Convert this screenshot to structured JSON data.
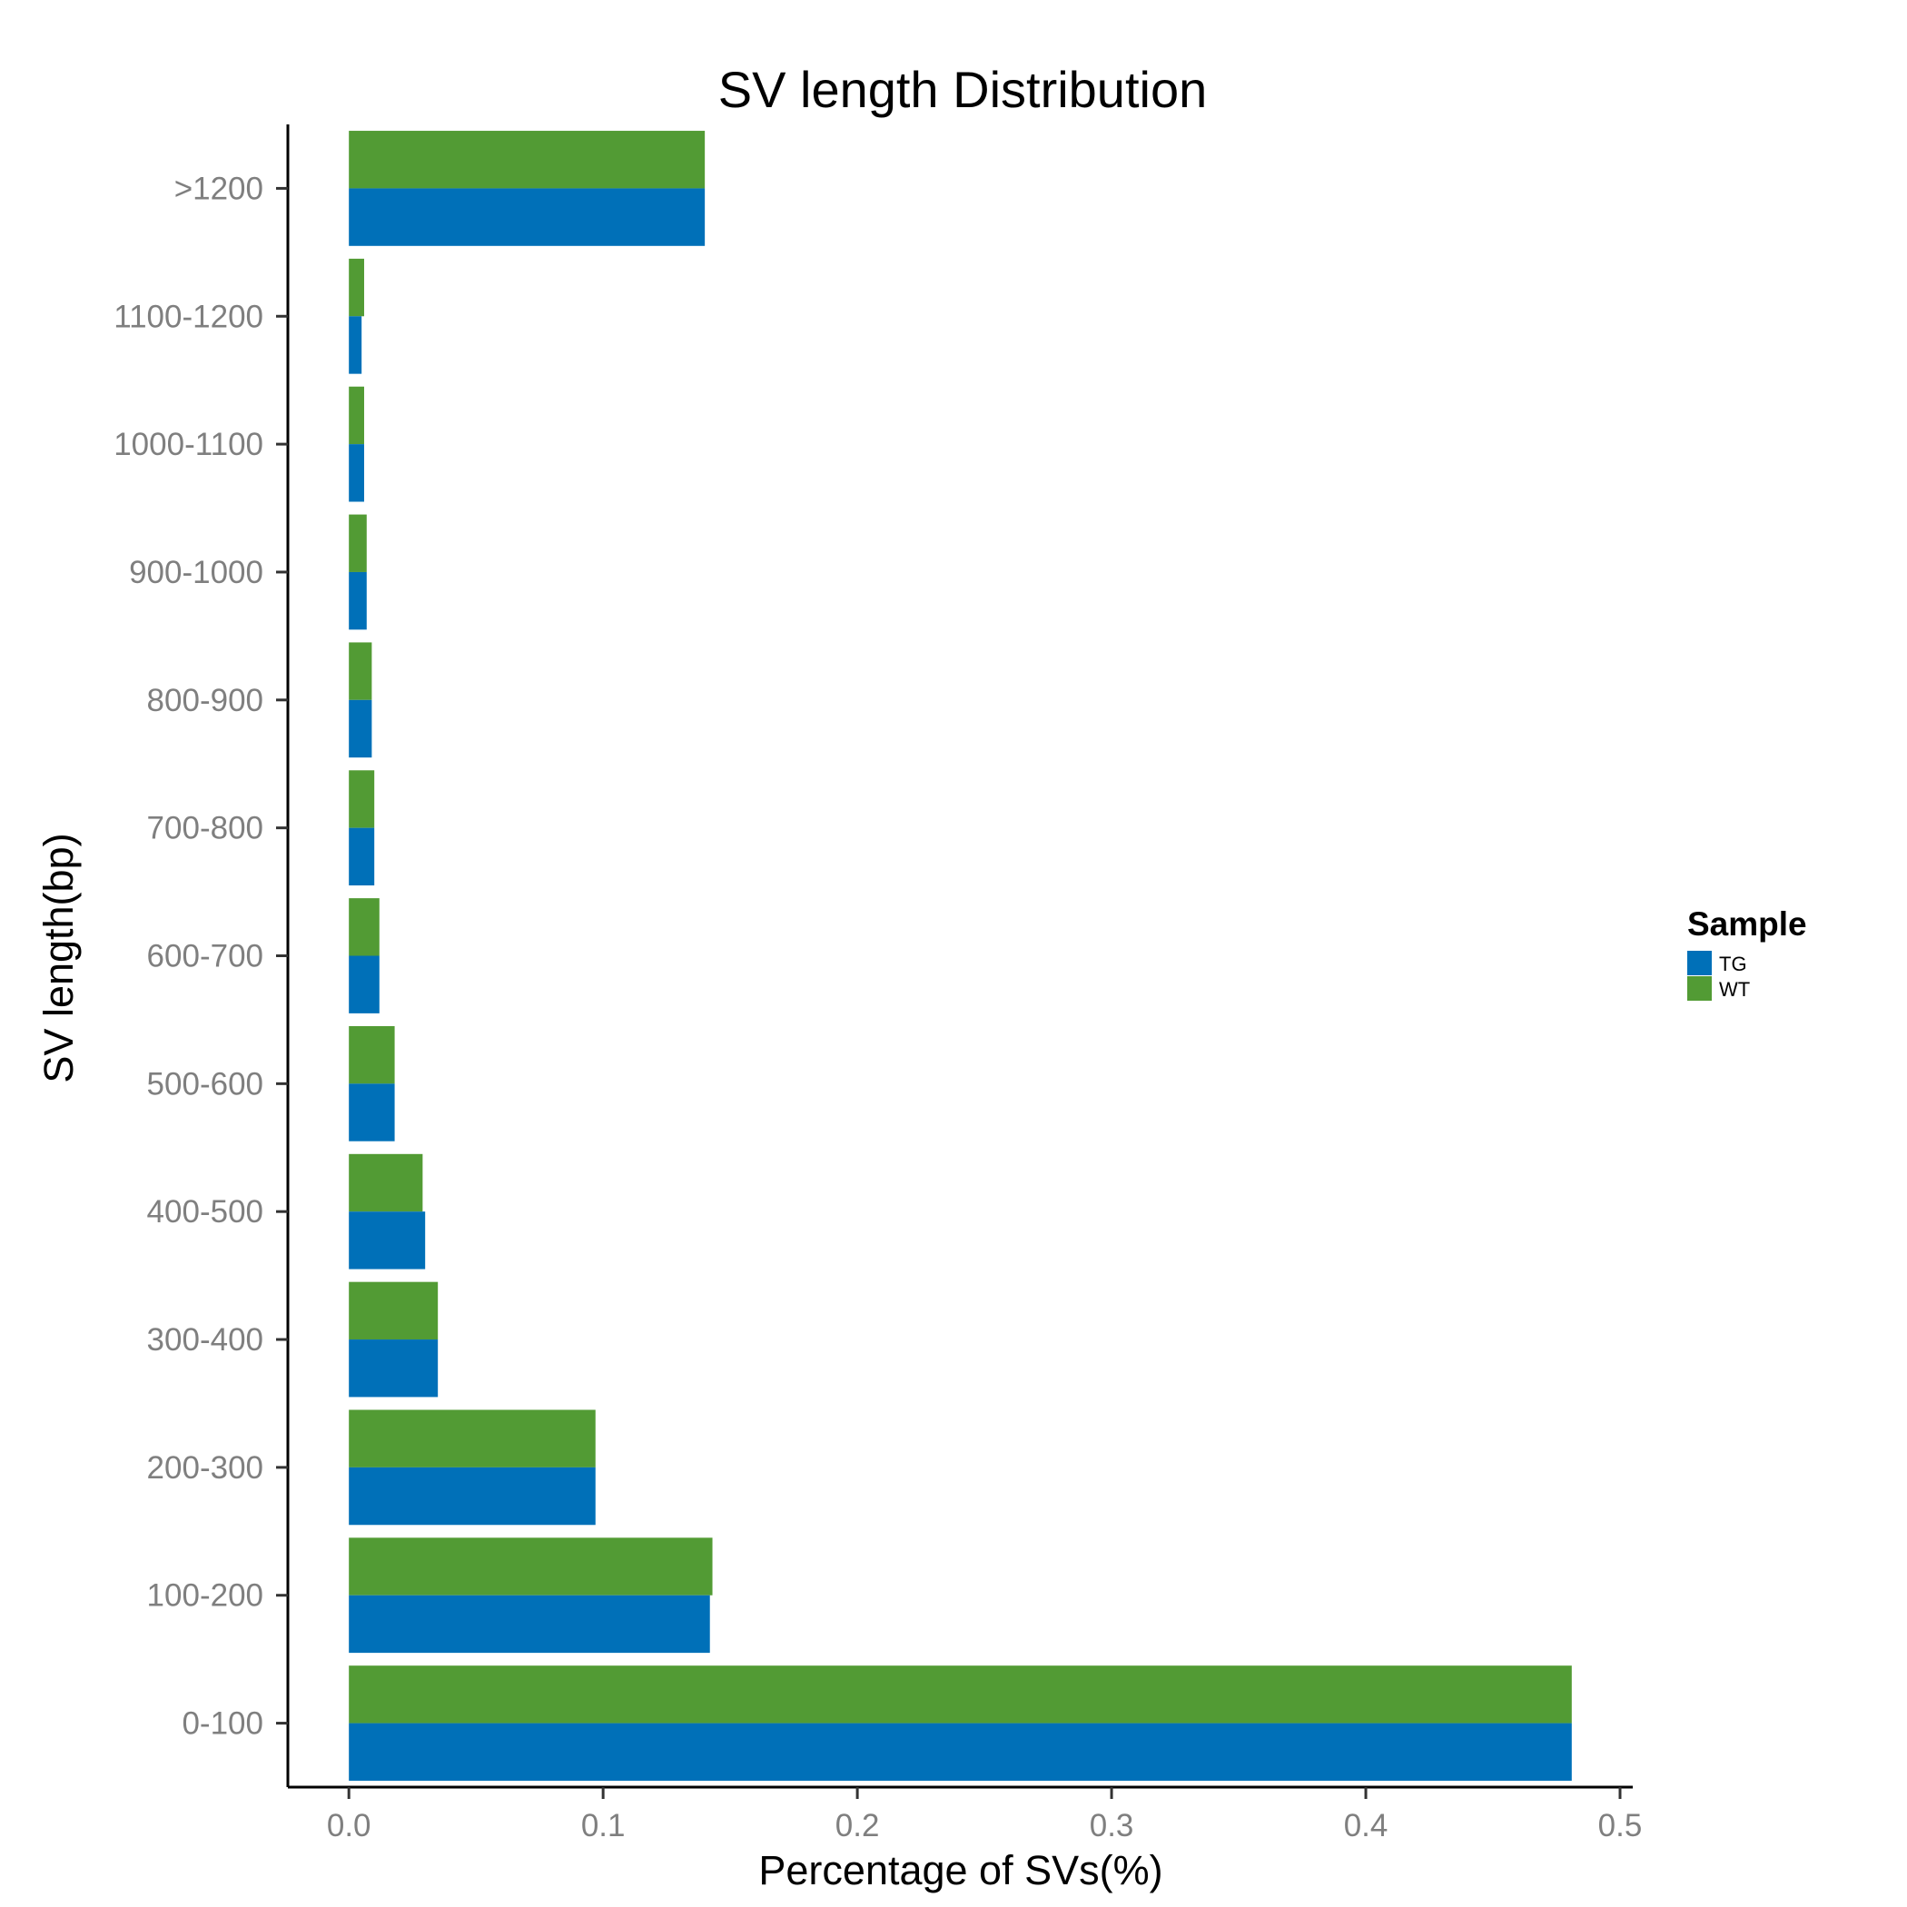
{
  "chart_data": {
    "type": "bar",
    "orientation": "horizontal",
    "title": "SV length Distribution",
    "xlabel": "Percentage of SVs(%)",
    "ylabel": "SV length(bp)",
    "categories": [
      "0-100",
      "100-200",
      "200-300",
      "300-400",
      "400-500",
      "500-600",
      "600-700",
      "700-800",
      "800-900",
      "900-1000",
      "1000-1100",
      "1100-1200",
      ">1200"
    ],
    "series": [
      {
        "name": "TG",
        "color": "#0070b8",
        "values": [
          0.481,
          0.142,
          0.097,
          0.035,
          0.03,
          0.018,
          0.012,
          0.01,
          0.009,
          0.007,
          0.006,
          0.005,
          0.14
        ]
      },
      {
        "name": "WT",
        "color": "#529b34",
        "values": [
          0.481,
          0.143,
          0.097,
          0.035,
          0.029,
          0.018,
          0.012,
          0.01,
          0.009,
          0.007,
          0.006,
          0.006,
          0.14
        ]
      }
    ],
    "xlim": [
      -0.024,
      0.505
    ],
    "xticks": [
      "0.0",
      "0.1",
      "0.2",
      "0.3",
      "0.4",
      "0.5"
    ],
    "grid": false,
    "legend": {
      "title": "Sample",
      "position": "right"
    }
  }
}
